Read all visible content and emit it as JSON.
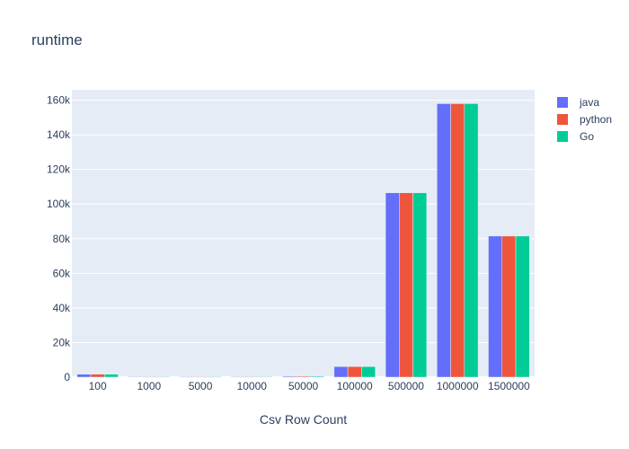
{
  "chart_data": {
    "type": "bar",
    "title": "runtime",
    "xlabel": "Csv Row Count",
    "ylabel": "",
    "categories": [
      "100",
      "1000",
      "5000",
      "10000",
      "50000",
      "100000",
      "500000",
      "1000000",
      "1500000"
    ],
    "series": [
      {
        "name": "java",
        "color": "#636efa",
        "values": [
          1700,
          300,
          300,
          300,
          500,
          6100,
          106500,
          158000,
          81500
        ]
      },
      {
        "name": "python",
        "color": "#ef553b",
        "values": [
          1700,
          300,
          300,
          300,
          500,
          6100,
          106500,
          158000,
          81500
        ]
      },
      {
        "name": "Go",
        "color": "#00cc96",
        "values": [
          1700,
          300,
          300,
          300,
          500,
          6100,
          106500,
          158000,
          81500
        ]
      }
    ],
    "ylim": [
      0,
      166000
    ],
    "yticks": [
      0,
      20000,
      40000,
      60000,
      80000,
      100000,
      120000,
      140000,
      160000
    ],
    "ytick_labels": [
      "0",
      "20k",
      "40k",
      "60k",
      "80k",
      "100k",
      "120k",
      "140k",
      "160k"
    ],
    "grid": true,
    "legend_position": "top-right",
    "plot_background": "#e5ecf6"
  }
}
